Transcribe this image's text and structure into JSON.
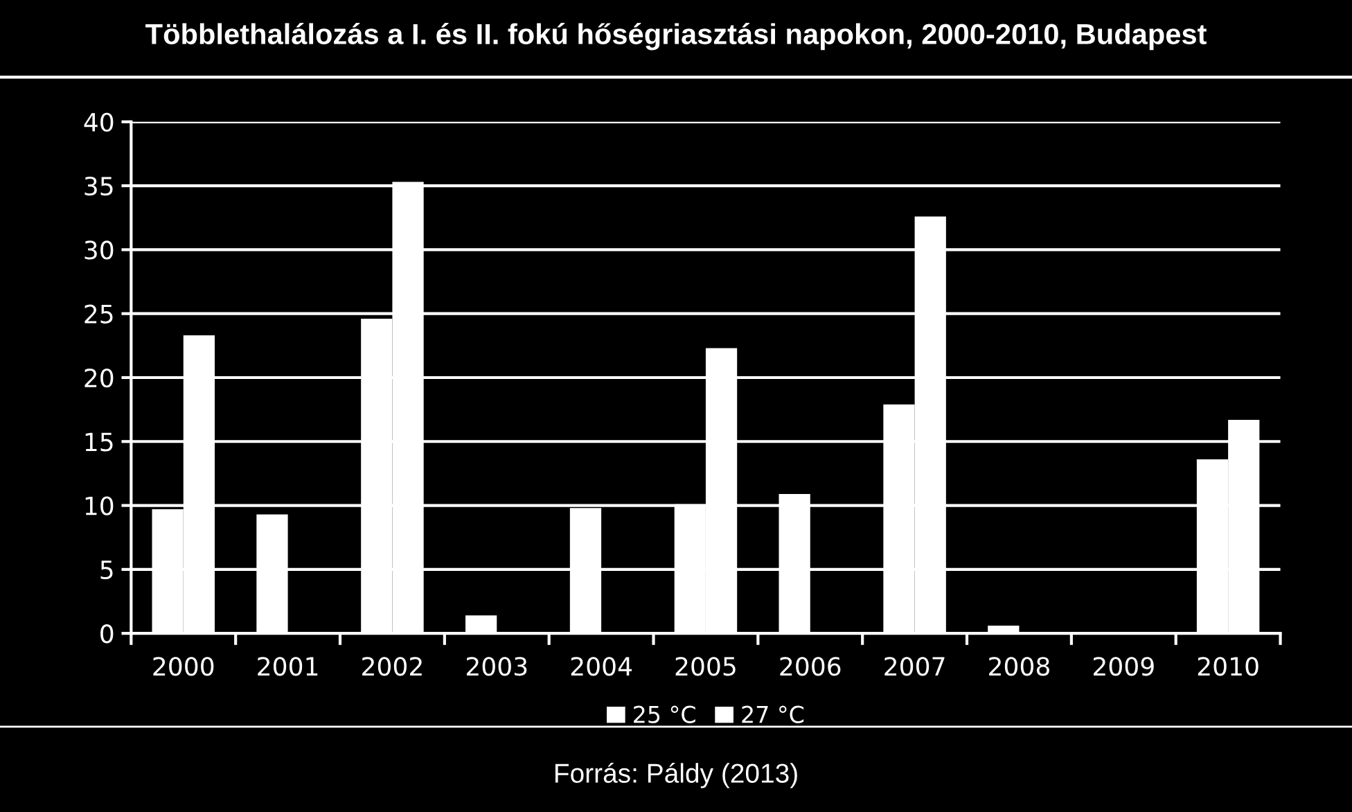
{
  "chart_data": {
    "type": "bar",
    "title": "Többlethalálozás a I. és II. fokú hőségriasztási napokon, 2000-2010, Budapest",
    "categories": [
      "2000",
      "2001",
      "2002",
      "2003",
      "2004",
      "2005",
      "2006",
      "2007",
      "2008",
      "2009",
      "2010"
    ],
    "series": [
      {
        "name": "25 °C",
        "color": "#ffffff",
        "values": [
          9.7,
          9.3,
          24.6,
          1.4,
          9.8,
          10.1,
          10.9,
          17.9,
          0.6,
          0,
          13.6
        ]
      },
      {
        "name": "27 °C",
        "color": "#ffffff",
        "values": [
          23.3,
          0,
          35.3,
          0,
          0,
          22.3,
          0,
          32.6,
          0,
          0,
          16.7
        ]
      }
    ],
    "ylim": [
      0,
      40
    ],
    "yticks": [
      0,
      5,
      10,
      15,
      20,
      25,
      30,
      35,
      40
    ],
    "grid": "y",
    "legend": "bottom",
    "annotations": [
      "Forrás: Páldy (2013)"
    ]
  }
}
